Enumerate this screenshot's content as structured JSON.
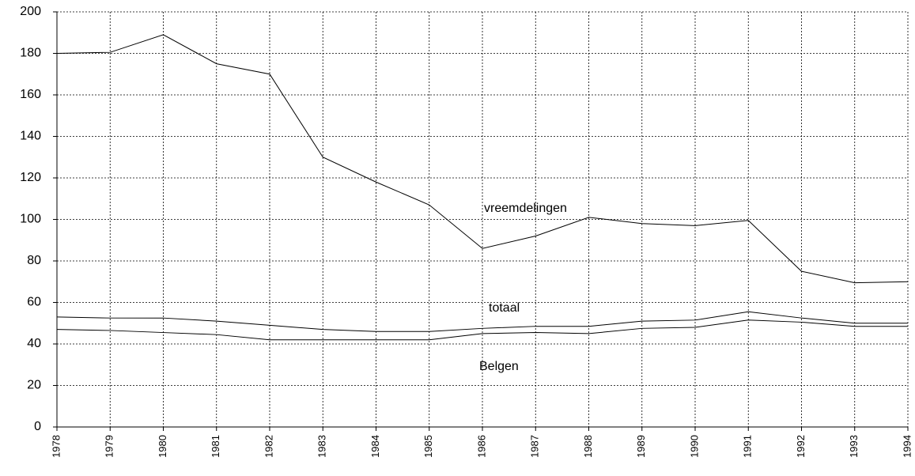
{
  "chart_data": {
    "type": "line",
    "categories": [
      "1978",
      "1979",
      "1980",
      "1981",
      "1982",
      "1983",
      "1984",
      "1985",
      "1986",
      "1987",
      "1988",
      "1989",
      "1990",
      "1991",
      "1992",
      "1993",
      "1994"
    ],
    "series": [
      {
        "name": "vreemdelingen",
        "color": "#000000",
        "values": [
          180,
          180.5,
          189,
          175,
          170,
          130,
          118,
          107,
          86,
          92,
          101,
          98,
          97,
          99.5,
          75,
          69.5,
          70
        ]
      },
      {
        "name": "totaal",
        "color": "#000000",
        "values": [
          53,
          52.5,
          52.5,
          51,
          49,
          47,
          46,
          46,
          47.5,
          48.5,
          48.5,
          51,
          51.5,
          55.5,
          52.5,
          50,
          50
        ]
      },
      {
        "name": "Belgen",
        "color": "#000000",
        "values": [
          47,
          46.5,
          45.5,
          44.5,
          42,
          42,
          42,
          42,
          45,
          45.5,
          45,
          47.5,
          48,
          51.5,
          50.5,
          48.5,
          48.5
        ]
      }
    ],
    "ylim": [
      0,
      200
    ],
    "yticks": [
      0,
      20,
      40,
      60,
      80,
      100,
      120,
      140,
      160,
      180,
      200
    ],
    "grid": true
  }
}
